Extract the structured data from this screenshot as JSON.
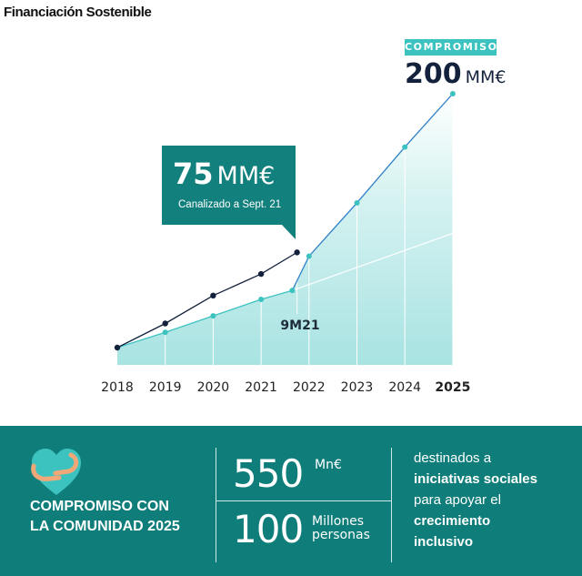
{
  "title": "Financiación Sostenible",
  "target": {
    "badge": "COMPROMISO",
    "value": "200",
    "unit": "MM€"
  },
  "callout": {
    "value": "75",
    "unit": "MM€",
    "caption": "Canalizado a Sept. 21"
  },
  "marker_label": "9M21",
  "colors": {
    "teal": "#3cc3c0",
    "dark_teal": "#12807c",
    "navy": "#14213d",
    "blue_line": "#2f80c8",
    "area": "#bfe9e8"
  },
  "chart_data": {
    "type": "line",
    "title": "Financiación Sostenible",
    "x_ticks": [
      "2018",
      "2019",
      "2020",
      "2021",
      "2022",
      "2023",
      "2024",
      "2025"
    ],
    "bold_tick": "2025",
    "unit": "MM€",
    "grid": "vertical lines per year",
    "series": [
      {
        "style": "actual",
        "color": "#14213d",
        "points": [
          [
            2018,
            0
          ],
          [
            2019,
            19
          ],
          [
            2020,
            41
          ],
          [
            2021,
            58
          ],
          [
            2021.75,
            75
          ]
        ]
      },
      {
        "style": "planned",
        "color": "#3cc3c0",
        "points": [
          [
            2018,
            0
          ],
          [
            2019,
            12
          ],
          [
            2020,
            25
          ],
          [
            2021,
            38
          ],
          [
            2021.65,
            45
          ],
          [
            2022,
            72
          ],
          [
            2023,
            114
          ],
          [
            2024,
            158
          ],
          [
            2025,
            200
          ]
        ]
      },
      {
        "style": "previous-trend",
        "color": "#ffffff",
        "points": [
          [
            2021.65,
            45
          ],
          [
            2025,
            90
          ]
        ]
      }
    ],
    "annotations": [
      "75 MM€ Canalizado a Sept. 21",
      "COMPROMISO 200 MM€",
      "9M21"
    ],
    "ylim": [
      0,
      200
    ]
  },
  "community": {
    "title_line1": "COMPROMISO CON",
    "title_line2": "LA COMUNIDAD 2025",
    "stat1_value": "550",
    "stat1_unit": "Mn€",
    "stat2_value": "100",
    "stat2_unit_line1": "Millones",
    "stat2_unit_line2": "personas",
    "desc_line1": "destinados a",
    "desc_line2": "iniciativas sociales",
    "desc_line3": "para apoyar el",
    "desc_line4": "crecimiento",
    "desc_line5": "inclusivo"
  }
}
